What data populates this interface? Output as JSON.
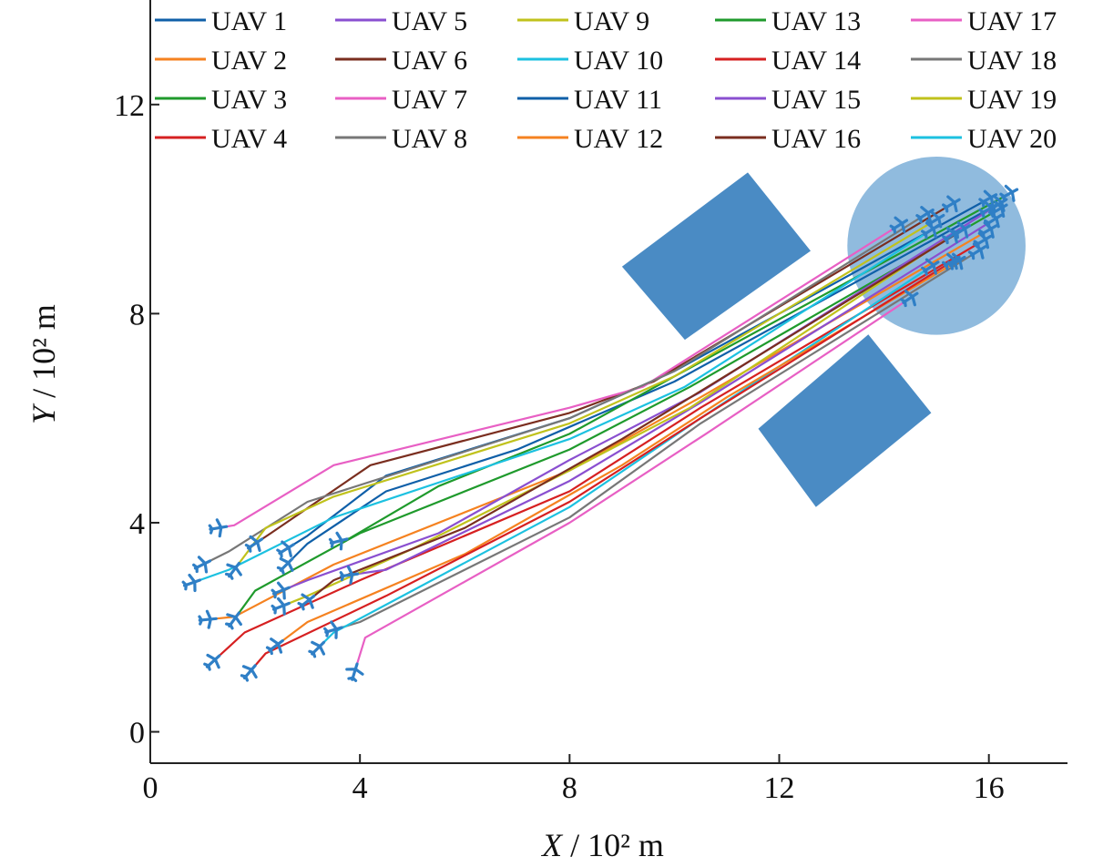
{
  "chart_data": {
    "type": "line",
    "xlabel_var": "X",
    "xlabel_unit": " / 10² m",
    "ylabel_var": "Y",
    "ylabel_unit": " / 10² m",
    "xlim": [
      0,
      17.5
    ],
    "ylim": [
      -0.6,
      14
    ],
    "xticks": [
      0,
      4,
      8,
      12,
      16
    ],
    "yticks": [
      0,
      4,
      8,
      12
    ],
    "grid": false,
    "legend_position": "top",
    "target_region": {
      "shape": "circle",
      "center": [
        15.0,
        9.3
      ],
      "radius": 1.7,
      "color": "#8ab7dc"
    },
    "obstacles": [
      {
        "shape": "square",
        "color": "#4a8bc4",
        "corners": [
          [
            9.0,
            8.9
          ],
          [
            11.4,
            10.7
          ],
          [
            12.6,
            9.2
          ],
          [
            10.2,
            7.5
          ]
        ]
      },
      {
        "shape": "square",
        "color": "#4a8bc4",
        "corners": [
          [
            11.6,
            5.8
          ],
          [
            13.7,
            7.6
          ],
          [
            14.9,
            6.1
          ],
          [
            12.7,
            4.3
          ]
        ]
      }
    ],
    "series": [
      {
        "name": "UAV 1",
        "color": "#0f5fa8",
        "points": [
          [
            2.6,
            3.5
          ],
          [
            3.0,
            3.75
          ],
          [
            4.5,
            4.9
          ],
          [
            8.0,
            6.0
          ],
          [
            10.0,
            6.9
          ],
          [
            16.0,
            10.2
          ]
        ]
      },
      {
        "name": "UAV 2",
        "color": "#f58220",
        "points": [
          [
            1.1,
            2.15
          ],
          [
            1.6,
            2.2
          ],
          [
            3.5,
            3.2
          ],
          [
            8.0,
            5.0
          ],
          [
            10.5,
            6.4
          ],
          [
            16.0,
            9.6
          ]
        ]
      },
      {
        "name": "UAV 3",
        "color": "#1f9a2c",
        "points": [
          [
            1.6,
            2.15
          ],
          [
            2.0,
            2.7
          ],
          [
            4.0,
            3.8
          ],
          [
            8.0,
            5.4
          ],
          [
            10.3,
            6.6
          ],
          [
            16.2,
            10.0
          ]
        ]
      },
      {
        "name": "UAV 4",
        "color": "#d62021",
        "points": [
          [
            1.2,
            1.35
          ],
          [
            1.8,
            1.9
          ],
          [
            4.0,
            2.9
          ],
          [
            8.0,
            4.6
          ],
          [
            10.5,
            6.2
          ],
          [
            15.9,
            9.4
          ]
        ]
      },
      {
        "name": "UAV 5",
        "color": "#8a4fd0",
        "points": [
          [
            3.8,
            3.0
          ],
          [
            4.5,
            3.1
          ],
          [
            8.0,
            4.8
          ],
          [
            10.5,
            6.3
          ],
          [
            16.1,
            9.8
          ]
        ]
      },
      {
        "name": "UAV 6",
        "color": "#7a2e1f",
        "points": [
          [
            2.0,
            3.6
          ],
          [
            2.3,
            3.8
          ],
          [
            4.2,
            5.1
          ],
          [
            8.0,
            6.1
          ],
          [
            9.6,
            6.7
          ],
          [
            15.3,
            10.1
          ]
        ]
      },
      {
        "name": "UAV 7",
        "color": "#e85fc4",
        "points": [
          [
            1.3,
            3.9
          ],
          [
            1.6,
            3.95
          ],
          [
            3.5,
            5.1
          ],
          [
            8.0,
            6.2
          ],
          [
            9.4,
            6.6
          ],
          [
            14.3,
            9.7
          ]
        ]
      },
      {
        "name": "UAV 8",
        "color": "#777777",
        "points": [
          [
            3.5,
            1.95
          ],
          [
            4.0,
            2.1
          ],
          [
            8.0,
            4.1
          ],
          [
            10.5,
            5.9
          ],
          [
            15.8,
            9.2
          ]
        ]
      },
      {
        "name": "UAV 9",
        "color": "#c0c21c",
        "points": [
          [
            2.5,
            2.4
          ],
          [
            3.0,
            2.6
          ],
          [
            5.0,
            3.5
          ],
          [
            8.0,
            5.0
          ],
          [
            10.3,
            6.2
          ],
          [
            15.3,
            9.5
          ]
        ]
      },
      {
        "name": "UAV 10",
        "color": "#1cc1e0",
        "points": [
          [
            3.2,
            1.6
          ],
          [
            3.5,
            1.9
          ],
          [
            5.0,
            2.7
          ],
          [
            8.0,
            4.3
          ],
          [
            10.5,
            6.0
          ],
          [
            14.9,
            8.9
          ]
        ]
      },
      {
        "name": "UAV 11",
        "color": "#0f5fa8",
        "points": [
          [
            2.6,
            3.2
          ],
          [
            3.0,
            3.6
          ],
          [
            4.5,
            4.6
          ],
          [
            7.0,
            5.4
          ],
          [
            10.0,
            6.7
          ],
          [
            16.0,
            10.0
          ]
        ]
      },
      {
        "name": "UAV 12",
        "color": "#f58220",
        "points": [
          [
            2.4,
            1.65
          ],
          [
            3.0,
            2.1
          ],
          [
            6.0,
            3.4
          ],
          [
            9.0,
            5.1
          ],
          [
            11.0,
            6.4
          ],
          [
            15.4,
            9.0
          ]
        ]
      },
      {
        "name": "UAV 13",
        "color": "#1f9a2c",
        "points": [
          [
            3.6,
            3.65
          ],
          [
            3.8,
            3.7
          ],
          [
            5.5,
            4.7
          ],
          [
            8.0,
            5.7
          ],
          [
            10.0,
            6.8
          ],
          [
            16.4,
            10.3
          ]
        ]
      },
      {
        "name": "UAV 14",
        "color": "#d62021",
        "points": [
          [
            1.9,
            1.15
          ],
          [
            2.2,
            1.5
          ],
          [
            4.5,
            2.6
          ],
          [
            8.0,
            4.4
          ],
          [
            10.5,
            6.0
          ],
          [
            15.3,
            9.0
          ]
        ]
      },
      {
        "name": "UAV 15",
        "color": "#8a4fd0",
        "points": [
          [
            2.5,
            2.7
          ],
          [
            3.0,
            2.9
          ],
          [
            5.5,
            3.8
          ],
          [
            8.0,
            5.2
          ],
          [
            10.5,
            6.5
          ],
          [
            16.2,
            10.1
          ]
        ]
      },
      {
        "name": "UAV 16",
        "color": "#7a2e1f",
        "points": [
          [
            3.0,
            2.5
          ],
          [
            3.5,
            2.9
          ],
          [
            6.0,
            3.9
          ],
          [
            9.0,
            5.6
          ],
          [
            10.8,
            6.7
          ],
          [
            15.5,
            9.6
          ]
        ]
      },
      {
        "name": "UAV 17",
        "color": "#e85fc4",
        "points": [
          [
            3.9,
            1.15
          ],
          [
            4.1,
            1.8
          ],
          [
            8.0,
            4.0
          ],
          [
            10.6,
            5.7
          ],
          [
            14.5,
            8.3
          ]
        ]
      },
      {
        "name": "UAV 18",
        "color": "#777777",
        "points": [
          [
            1.0,
            3.2
          ],
          [
            1.5,
            3.45
          ],
          [
            3.0,
            4.4
          ],
          [
            8.0,
            6.0
          ],
          [
            10.0,
            6.9
          ],
          [
            14.8,
            9.9
          ]
        ]
      },
      {
        "name": "UAV 19",
        "color": "#c0c21c",
        "points": [
          [
            1.6,
            3.1
          ],
          [
            2.2,
            3.9
          ],
          [
            3.5,
            4.5
          ],
          [
            8.0,
            5.9
          ],
          [
            10.0,
            6.8
          ],
          [
            15.0,
            9.8
          ]
        ]
      },
      {
        "name": "UAV 20",
        "color": "#1cc1e0",
        "points": [
          [
            0.8,
            2.85
          ],
          [
            1.5,
            3.1
          ],
          [
            3.5,
            4.1
          ],
          [
            8.0,
            5.6
          ],
          [
            10.2,
            6.6
          ],
          [
            14.9,
            9.6
          ]
        ]
      }
    ]
  }
}
